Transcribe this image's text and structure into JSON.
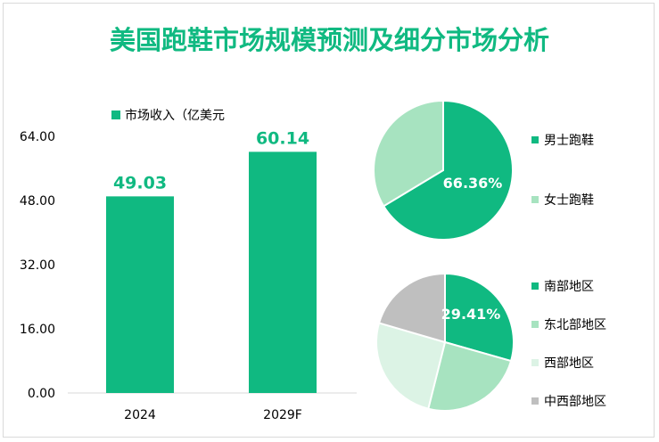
{
  "title": "美国跑鞋市场规模预测及细分市场分析",
  "colors": {
    "primary": "#10b981",
    "light_green": "#a7e3c0",
    "pale_green": "#dcf3e5",
    "gray": "#bfbfbf",
    "axis_text": "#000000"
  },
  "chart_data": [
    {
      "type": "bar",
      "legend_label": "市场收入（亿美元",
      "legend_placement": "top",
      "categories": [
        "2024",
        "2029F"
      ],
      "values": [
        49.03,
        60.14
      ],
      "value_labels": [
        "49.03",
        "60.14"
      ],
      "yticks": [
        "0.00",
        "16.00",
        "32.00",
        "48.00",
        "64.00"
      ],
      "ylim": [
        0,
        64
      ],
      "grid": false
    },
    {
      "type": "pie",
      "slices": [
        {
          "label": "男士跑鞋",
          "value": 66.36,
          "color": "#10b981"
        },
        {
          "label": "女士跑鞋",
          "value": 33.64,
          "color": "#a7e3c0"
        }
      ],
      "data_label": "66.36%",
      "legend_placement": "right"
    },
    {
      "type": "pie",
      "slices": [
        {
          "label": "南部地区",
          "value": 29.41,
          "color": "#10b981"
        },
        {
          "label": "东北部地区",
          "value": 24.5,
          "color": "#a7e3c0"
        },
        {
          "label": "西部地区",
          "value": 25.6,
          "color": "#dcf3e5"
        },
        {
          "label": "中西部地区",
          "value": 20.49,
          "color": "#bfbfbf"
        }
      ],
      "data_label": "29.41%",
      "legend_placement": "right"
    }
  ]
}
